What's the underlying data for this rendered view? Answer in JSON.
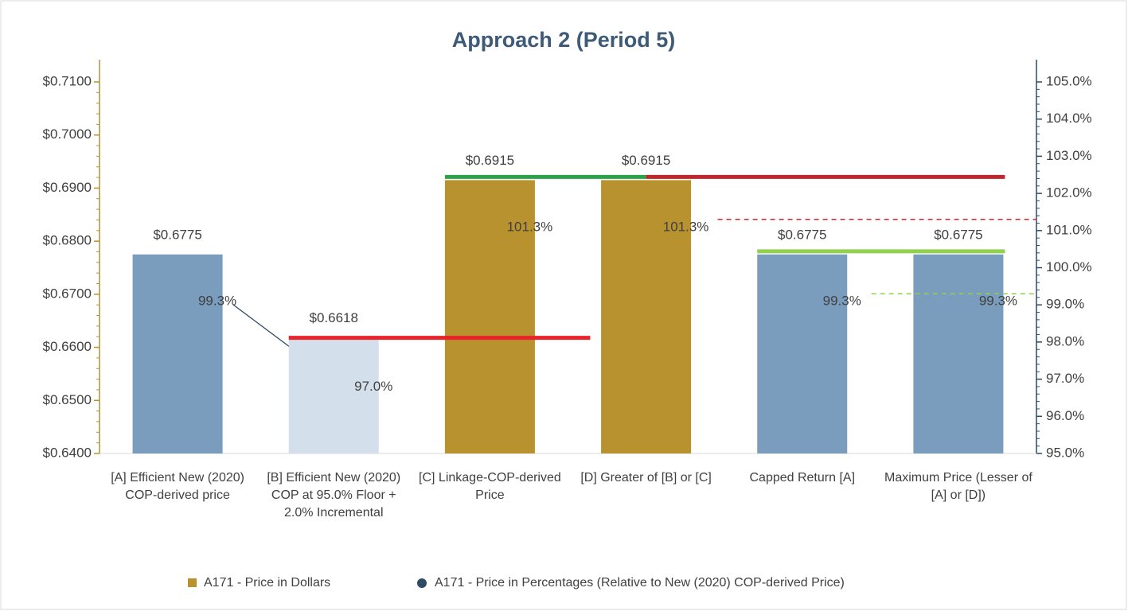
{
  "chart_data": {
    "type": "bar",
    "title": "Approach 2 (Period 5)",
    "categories": [
      "[A] Efficient New (2020) COP-derived price",
      "[B] Efficient New (2020) COP at 95.0% Floor + 2.0% Incremental",
      "[C] Linkage-COP-derived Price",
      "[D] Greater of [B] or [C]",
      "Capped Return [A]",
      "Maximum Price (Lesser of [A] or [D])"
    ],
    "series": [
      {
        "name": "A171 - Price in Dollars",
        "color": "#b8922f",
        "colors": [
          "#7a9cbd",
          "#d3dfeb",
          "#b8922f",
          "#b8922f",
          "#7a9cbd",
          "#7a9cbd"
        ],
        "values": [
          0.6775,
          0.6618,
          0.6915,
          0.6915,
          0.6775,
          0.6775
        ],
        "value_labels": [
          "$0.6775",
          "$0.6618",
          "$0.6915",
          "$0.6915",
          "$0.6775",
          "$0.6775"
        ]
      },
      {
        "name": "A171 - Price in Percentages (Relative to New (2020) COP-derived Price)",
        "color": "#2f4a66",
        "axis": "y2",
        "values": [
          99.3,
          97.0,
          101.3,
          101.3,
          99.3,
          99.3
        ],
        "value_labels": [
          "99.3%",
          "97.0%",
          "101.3%",
          "101.3%",
          "99.3%",
          "99.3%"
        ]
      }
    ],
    "ylim": [
      0.64,
      0.71
    ],
    "yticks": [
      {
        "value": 0.64,
        "label": "$0.6400"
      },
      {
        "value": 0.65,
        "label": "$0.6500"
      },
      {
        "value": 0.66,
        "label": "$0.6600"
      },
      {
        "value": 0.67,
        "label": "$0.6700"
      },
      {
        "value": 0.68,
        "label": "$0.6800"
      },
      {
        "value": 0.69,
        "label": "$0.6900"
      },
      {
        "value": 0.7,
        "label": "$0.7000"
      },
      {
        "value": 0.71,
        "label": "$0.7100"
      }
    ],
    "y2lim": [
      95,
      105
    ],
    "y2ticks": [
      {
        "value": 95,
        "label": "95.0%"
      },
      {
        "value": 96,
        "label": "96.0%"
      },
      {
        "value": 97,
        "label": "97.0%"
      },
      {
        "value": 98,
        "label": "98.0%"
      },
      {
        "value": 99,
        "label": "99.0%"
      },
      {
        "value": 100,
        "label": "100.0%"
      },
      {
        "value": 101,
        "label": "101.0%"
      },
      {
        "value": 102,
        "label": "102.0%"
      },
      {
        "value": 103,
        "label": "103.0%"
      },
      {
        "value": 104,
        "label": "104.0%"
      },
      {
        "value": 105,
        "label": "105.0%"
      }
    ],
    "grid": false,
    "legend": "bottom"
  }
}
